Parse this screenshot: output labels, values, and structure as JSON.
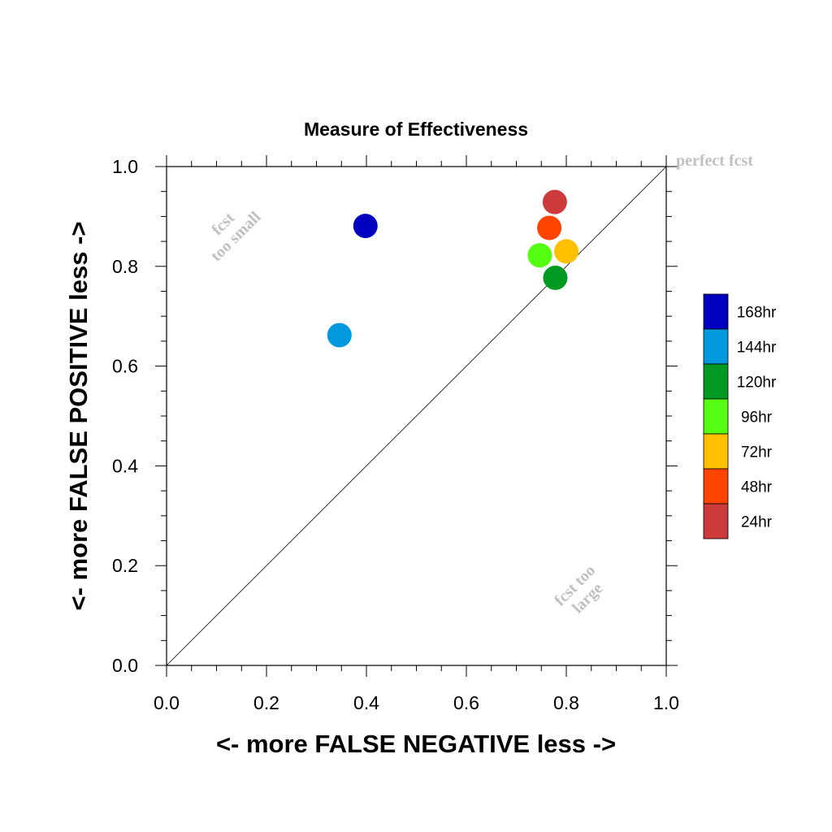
{
  "chart_data": {
    "type": "scatter",
    "title": "Measure of Effectiveness",
    "xlabel": "<- more   FALSE NEGATIVE   less ->",
    "ylabel": "<- more   FALSE POSITIVE   less ->",
    "xlim": [
      0.0,
      1.0
    ],
    "ylim": [
      0.0,
      1.0
    ],
    "xticks": [
      "0.0",
      "0.2",
      "0.4",
      "0.6",
      "0.8",
      "1.0"
    ],
    "yticks": [
      "0.0",
      "0.2",
      "0.4",
      "0.6",
      "0.8",
      "1.0"
    ],
    "grid": false,
    "diagonal_line": true,
    "legend_position": "right",
    "annotations": {
      "perfect": "perfect fcst",
      "too_small_line1": "fcst",
      "too_small_line2": "too small",
      "too_large_line1": "fcst too",
      "too_large_line2": "large"
    },
    "series": [
      {
        "name": "168hr",
        "color": "#0000c0",
        "x": 0.398,
        "y": 0.881
      },
      {
        "name": "144hr",
        "color": "#0099dd",
        "x": 0.346,
        "y": 0.662
      },
      {
        "name": "120hr",
        "color": "#009922",
        "x": 0.778,
        "y": 0.777
      },
      {
        "name": "96hr",
        "color": "#55ff11",
        "x": 0.747,
        "y": 0.822
      },
      {
        "name": "72hr",
        "color": "#ffc000",
        "x": 0.8,
        "y": 0.83
      },
      {
        "name": "48hr",
        "color": "#ff4400",
        "x": 0.766,
        "y": 0.877
      },
      {
        "name": "24hr",
        "color": "#cc3a3a",
        "x": 0.777,
        "y": 0.929
      }
    ]
  }
}
